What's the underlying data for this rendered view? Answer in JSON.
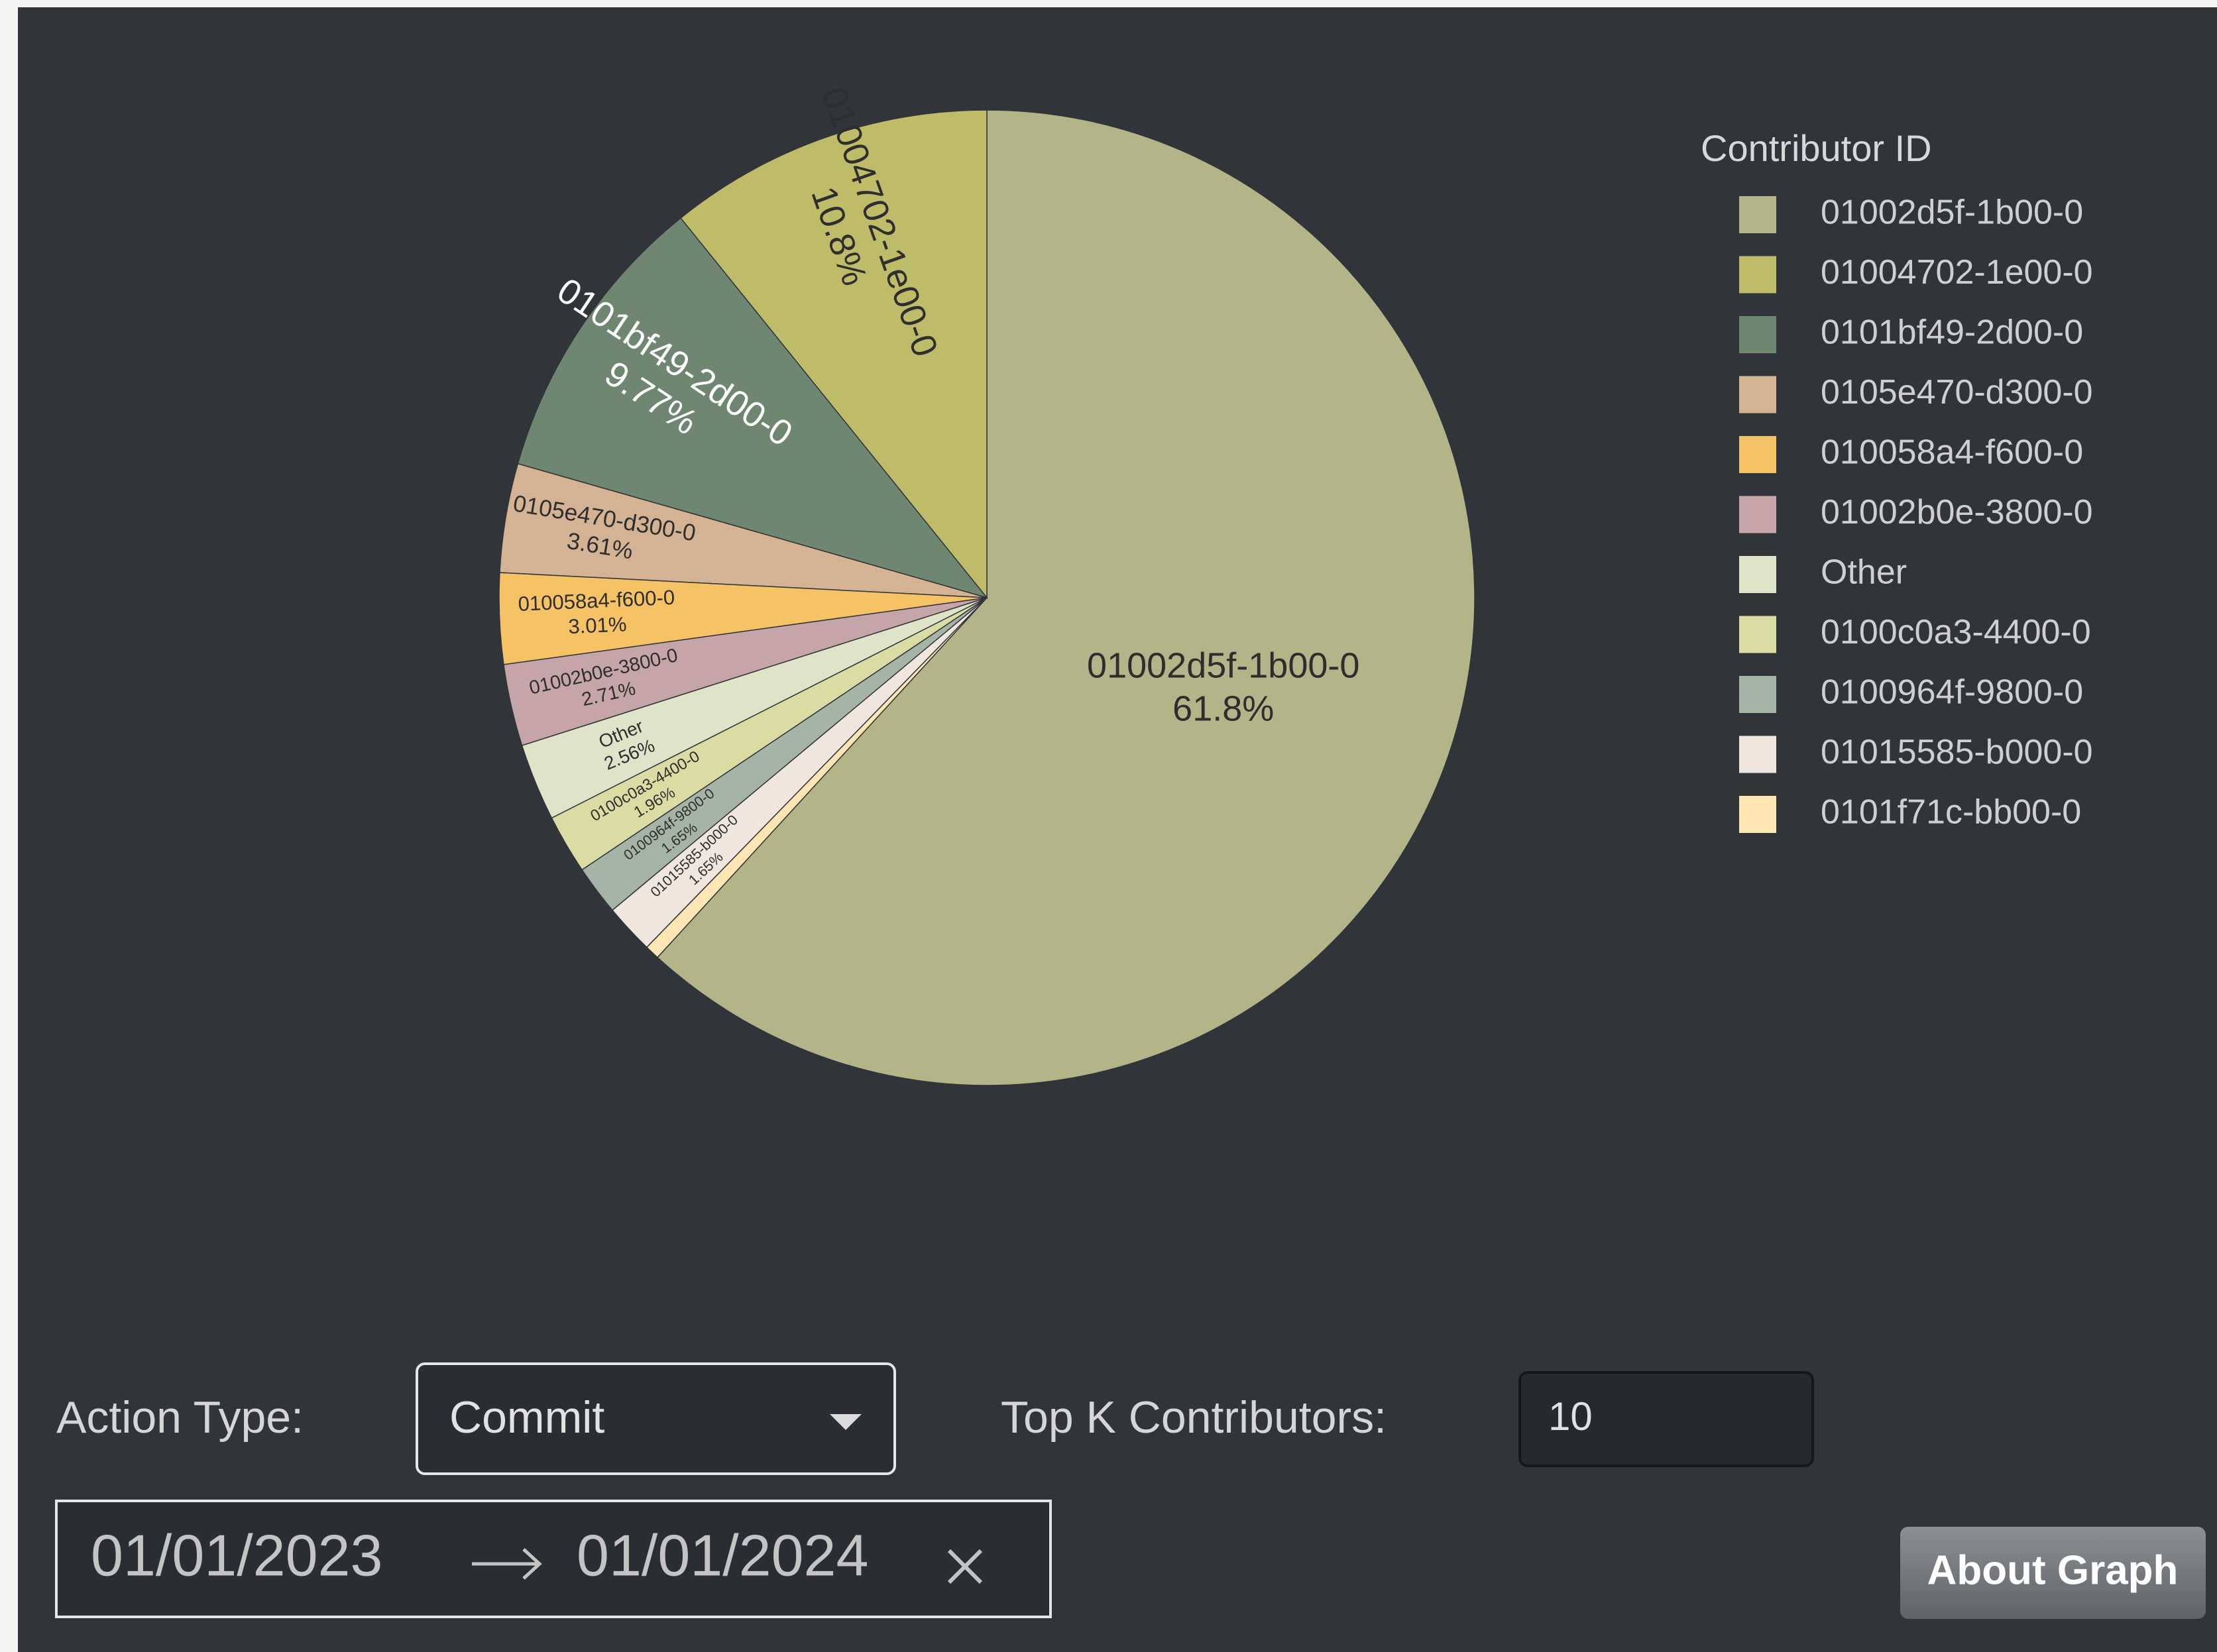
{
  "chart_data": {
    "type": "pie",
    "legend_title": "Contributor ID",
    "categories": [
      "01002d5f-1b00-0",
      "01004702-1e00-0",
      "0101bf49-2d00-0",
      "0105e470-d300-0",
      "010058a4-f600-0",
      "01002b0e-3800-0",
      "Other",
      "0100c0a3-4400-0",
      "0100964f-9800-0",
      "01015585-b000-0",
      "0101f71c-bb00-0"
    ],
    "values": [
      61.8,
      10.8,
      9.77,
      3.61,
      3.01,
      2.71,
      2.56,
      1.96,
      1.65,
      1.65,
      0.48
    ],
    "value_labels": [
      "61.8%",
      "10.8%",
      "9.77%",
      "3.61%",
      "3.01%",
      "2.71%",
      "2.56%",
      "1.96%",
      "1.65%",
      "1.65%",
      null
    ],
    "colors": [
      "#b3b589",
      "#bfbc69",
      "#6f8671",
      "#d4b394",
      "#f5c266",
      "#c6a5a8",
      "#dfe3c8",
      "#dadca3",
      "#a6b4a5",
      "#f0e6de",
      "#fde5b4"
    ],
    "legend": "top-right"
  },
  "controls": {
    "action_type_label": "Action Type:",
    "action_type_value": "Commit",
    "top_k_label": "Top K Contributors:",
    "top_k_value": "10",
    "date_start": "01/01/2023",
    "date_end": "01/01/2024",
    "about_button": "About Graph"
  }
}
